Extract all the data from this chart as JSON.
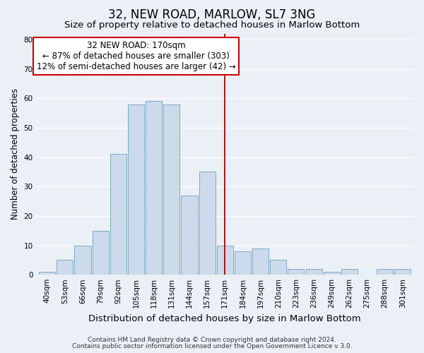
{
  "title": "32, NEW ROAD, MARLOW, SL7 3NG",
  "subtitle": "Size of property relative to detached houses in Marlow Bottom",
  "xlabel": "Distribution of detached houses by size in Marlow Bottom",
  "ylabel": "Number of detached properties",
  "bar_labels": [
    "40sqm",
    "53sqm",
    "66sqm",
    "79sqm",
    "92sqm",
    "105sqm",
    "118sqm",
    "131sqm",
    "144sqm",
    "157sqm",
    "171sqm",
    "184sqm",
    "197sqm",
    "210sqm",
    "223sqm",
    "236sqm",
    "249sqm",
    "262sqm",
    "275sqm",
    "288sqm",
    "301sqm"
  ],
  "bar_values": [
    1,
    5,
    10,
    15,
    41,
    58,
    59,
    58,
    27,
    35,
    10,
    8,
    9,
    5,
    2,
    2,
    1,
    2,
    0,
    2,
    2
  ],
  "bar_color": "#ccdaeb",
  "bar_edge_color": "#7aaac8",
  "bar_edge_width": 0.7,
  "vline_x_index": 10,
  "vline_color": "#aa0000",
  "annotation_title": "32 NEW ROAD: 170sqm",
  "annotation_line1": "← 87% of detached houses are smaller (303)",
  "annotation_line2": "12% of semi-detached houses are larger (42) →",
  "annotation_box_color": "#ffffff",
  "annotation_box_edge_color": "#cc0000",
  "ylim": [
    0,
    82
  ],
  "yticks": [
    0,
    10,
    20,
    30,
    40,
    50,
    60,
    70,
    80
  ],
  "footnote1": "Contains HM Land Registry data © Crown copyright and database right 2024.",
  "footnote2": "Contains public sector information licensed under the Open Government Licence v 3.0.",
  "bg_color": "#eaf0f6",
  "plot_bg_color": "#eaf0f6",
  "grid_color": "#ffffff",
  "title_fontsize": 12,
  "subtitle_fontsize": 9.5,
  "xlabel_fontsize": 9.5,
  "ylabel_fontsize": 8.5,
  "tick_fontsize": 7.5,
  "annotation_fontsize": 8.5,
  "footnote_fontsize": 6.5
}
